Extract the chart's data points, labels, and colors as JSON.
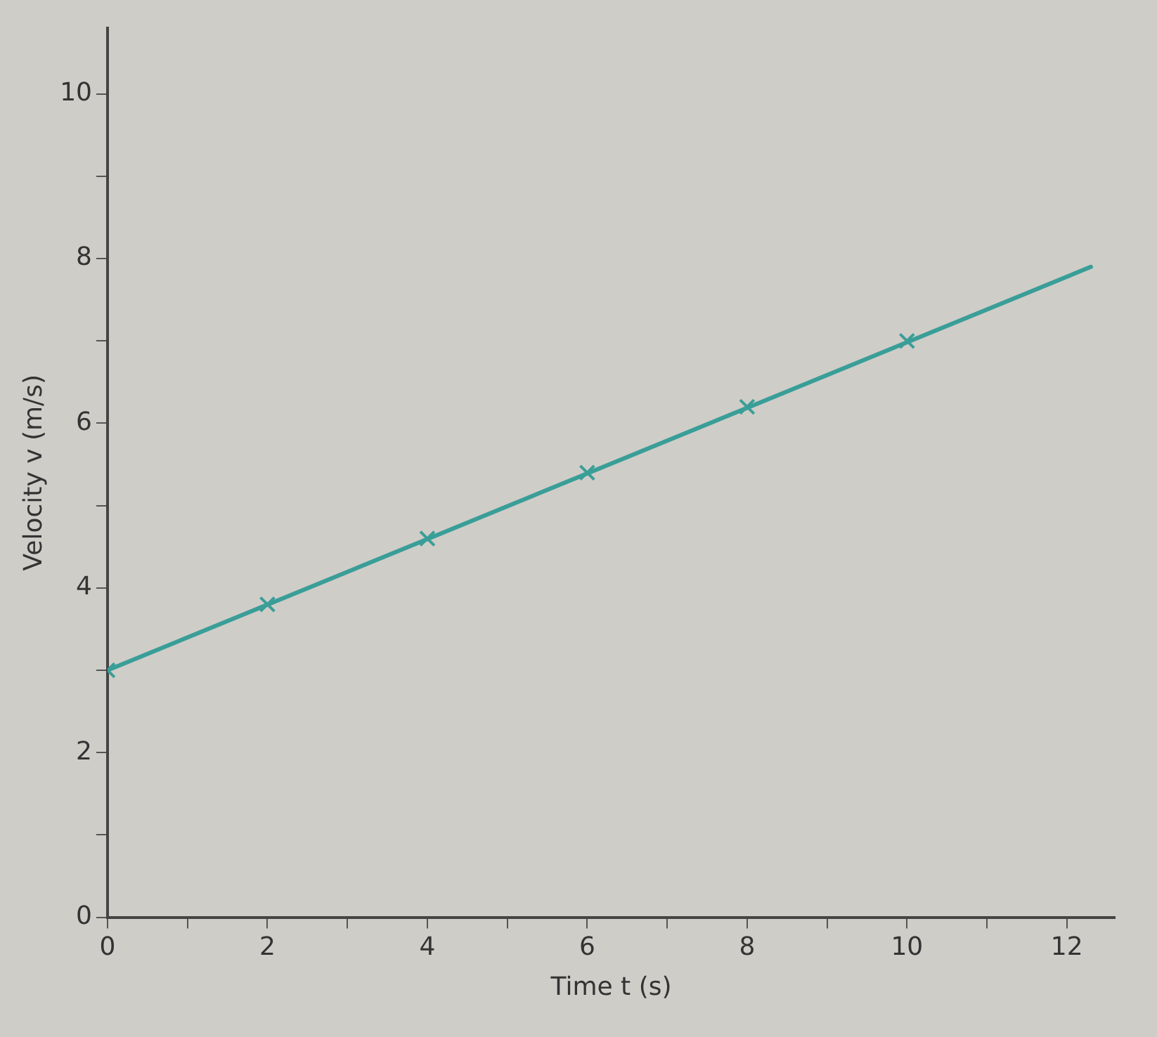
{
  "chart_data": {
    "type": "scatter",
    "xlabel": "Time t (s)",
    "ylabel": "Velocity v (m/s)",
    "xlim": [
      0,
      12.6
    ],
    "ylim": [
      0,
      10.8
    ],
    "xticks": [
      0,
      {
        "value": 1,
        "label": null
      },
      2,
      {
        "value": 3,
        "label": null
      },
      4,
      {
        "value": 5,
        "label": null
      },
      6,
      {
        "value": 7,
        "label": null
      },
      8,
      {
        "value": 9,
        "label": null
      },
      10,
      {
        "value": 11,
        "label": null
      },
      12
    ],
    "yticks": [
      0,
      {
        "value": 1,
        "label": null
      },
      2,
      {
        "value": 3,
        "label": null
      },
      4,
      {
        "value": 5,
        "label": null
      },
      6,
      {
        "value": 7,
        "label": null
      },
      8,
      {
        "value": 9,
        "label": null
      },
      10
    ],
    "series": [
      {
        "color": "#3a9e98",
        "x": [
          0,
          2,
          4,
          6,
          8,
          10
        ],
        "values": [
          3.0,
          3.8,
          4.6,
          5.4,
          6.2,
          7.0
        ]
      },
      {
        "type": "line",
        "marker": "none",
        "color": "#3a9e98",
        "x": [
          0,
          12.3
        ],
        "values": [
          3.0,
          7.9
        ]
      }
    ],
    "marker": "cross",
    "grid": false,
    "legend": false
  }
}
